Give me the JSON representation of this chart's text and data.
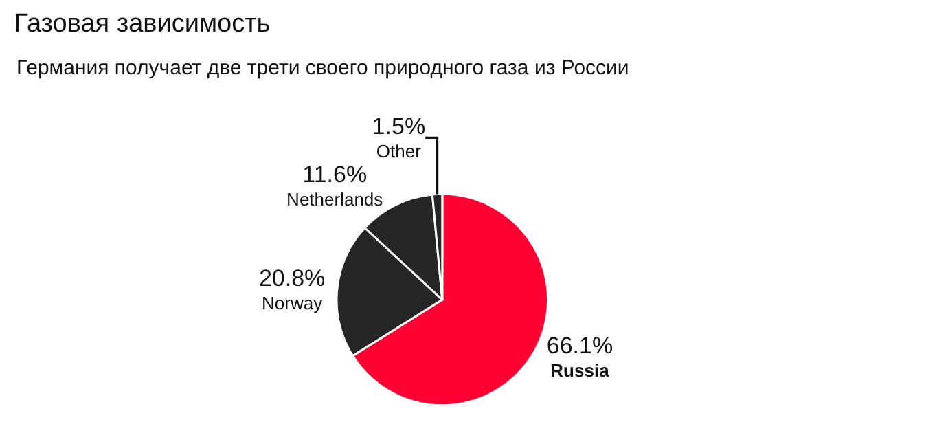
{
  "chart_data": {
    "type": "pie",
    "title": "Газовая зависимость",
    "subtitle": "Германия получает две трети своего природного газа из России",
    "categories": [
      "Russia",
      "Norway",
      "Netherlands",
      "Other"
    ],
    "values": [
      66.1,
      20.8,
      11.6,
      1.5
    ],
    "value_labels": [
      "66.1%",
      "20.8%",
      "11.6%",
      "1.5%"
    ],
    "colors": [
      "#ff0033",
      "#262626",
      "#262626",
      "#262626"
    ],
    "legend": false
  }
}
